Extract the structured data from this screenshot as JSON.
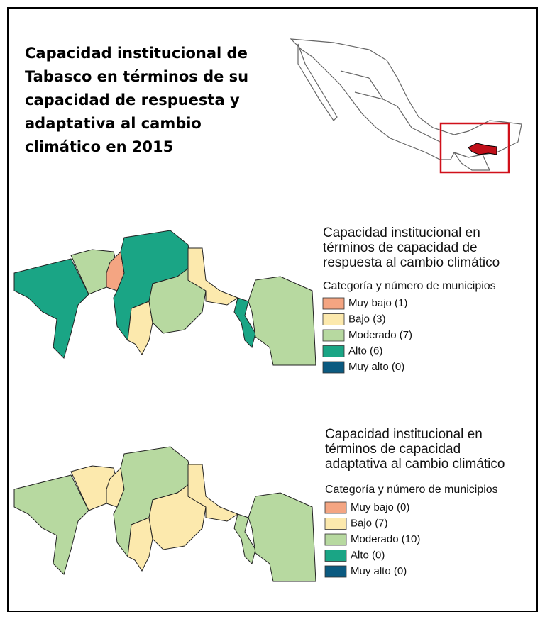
{
  "title": [
    "Capacidad institucional de",
    "Tabasco en términos de su",
    "capacidad de respuesta y",
    "adaptativa al cambio",
    "climático en 2015"
  ],
  "maps": [
    {
      "legend_title": [
        "Capacidad institucional en",
        "términos de capacidad de",
        "respuesta al cambio climático"
      ],
      "legend_subtitle": "Categoría y número de municipios",
      "legend": [
        {
          "label": "Muy bajo (1)",
          "color": "#f4a582"
        },
        {
          "label": "Bajo (3)",
          "color": "#fce9ad"
        },
        {
          "label": "Moderado (7)",
          "color": "#b7d9a0"
        },
        {
          "label": "Alto (6)",
          "color": "#1aa585"
        },
        {
          "label": "Muy alto (0)",
          "color": "#0b5a80"
        }
      ]
    },
    {
      "legend_title": [
        "Capacidad institucional en",
        "términos de capacidad",
        "adaptativa al cambio climático"
      ],
      "legend_subtitle": "Categoría y número de municipios",
      "legend": [
        {
          "label": "Muy bajo (0)",
          "color": "#f4a582"
        },
        {
          "label": "Bajo (7)",
          "color": "#fce9ad"
        },
        {
          "label": "Moderado (10)",
          "color": "#b7d9a0"
        },
        {
          "label": "Alto (0)",
          "color": "#1aa585"
        },
        {
          "label": "Muy alto (0)",
          "color": "#0b5a80"
        }
      ]
    }
  ]
}
